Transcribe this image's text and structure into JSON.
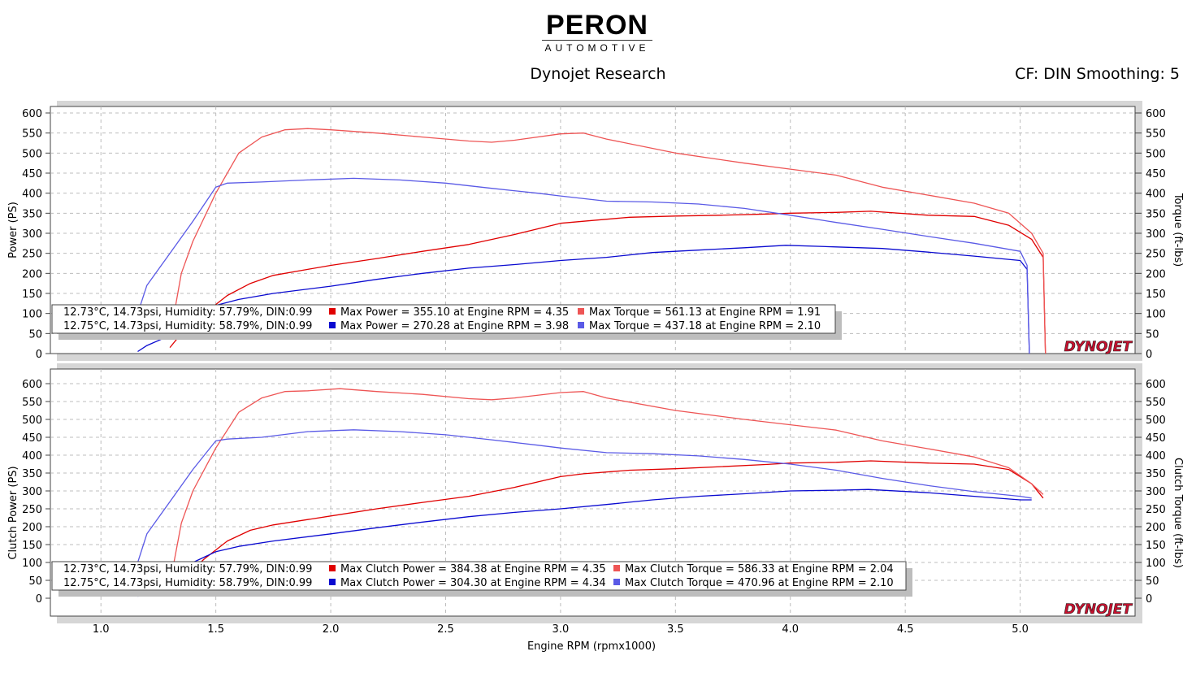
{
  "logo": {
    "name": "PERON",
    "sub": "AUTOMOTIVE"
  },
  "header": {
    "title": "Dynojet Research",
    "settings": "CF: DIN Smoothing: 5"
  },
  "watermark": "DYNOJET",
  "colors": {
    "run1_power": "#e00000",
    "run1_torque": "#ee5555",
    "run2_power": "#0a0ad0",
    "run2_torque": "#5a5ae6"
  },
  "chart_data": [
    {
      "type": "line",
      "xlabel": "Engine RPM (rpmx1000)",
      "ylabel": "Power (PS)",
      "y2label": "Torque (ft-lbs)",
      "xlim": [
        0.78,
        5.5
      ],
      "ylim": [
        0,
        600
      ],
      "xticks": [
        "1.0",
        "1.5",
        "2.0",
        "2.5",
        "3.0",
        "3.5",
        "4.0",
        "4.5",
        "5.0"
      ],
      "yticks": [
        "0",
        "50",
        "100",
        "150",
        "200",
        "250",
        "300",
        "350",
        "400",
        "450",
        "500",
        "550",
        "600"
      ],
      "grid": true,
      "legend": {
        "position": "bottom-left",
        "rows": [
          {
            "conditions": "12.73°C, 14.73psi, Humidity: 57.79%, DIN:0.99",
            "power_text": "Max Power = 355.10 at Engine RPM = 4.35",
            "torque_text": "Max Torque = 561.13 at Engine RPM = 1.91"
          },
          {
            "conditions": "12.75°C, 14.73psi, Humidity: 58.79%, DIN:0.99",
            "power_text": "Max Power = 270.28 at Engine RPM = 3.98",
            "torque_text": "Max Torque = 437.18 at Engine RPM = 2.10"
          }
        ]
      },
      "series": [
        {
          "x": [
            1.3,
            1.35,
            1.45,
            1.55,
            1.65,
            1.75,
            1.9,
            2.0,
            2.2,
            2.4,
            2.6,
            2.8,
            3.0,
            3.1,
            3.3,
            3.5,
            3.7,
            3.9,
            4.0,
            4.2,
            4.35,
            4.6,
            4.8,
            4.95,
            5.05,
            5.1,
            5.11
          ],
          "y": [
            15,
            50,
            100,
            145,
            175,
            195,
            210,
            220,
            237,
            255,
            272,
            297,
            325,
            330,
            340,
            343,
            345,
            348,
            350,
            352,
            355,
            345,
            342,
            320,
            285,
            240,
            0
          ]
        },
        {
          "x": [
            1.3,
            1.35,
            1.4,
            1.5,
            1.6,
            1.7,
            1.8,
            1.9,
            2.0,
            2.2,
            2.4,
            2.6,
            2.7,
            2.8,
            3.0,
            3.1,
            3.2,
            3.5,
            3.8,
            4.0,
            4.2,
            4.4,
            4.6,
            4.8,
            4.95,
            5.05,
            5.1,
            5.11
          ],
          "y": [
            40,
            200,
            280,
            400,
            500,
            540,
            558,
            561,
            558,
            550,
            540,
            530,
            527,
            532,
            548,
            550,
            535,
            500,
            475,
            460,
            445,
            415,
            395,
            375,
            350,
            300,
            250,
            0
          ]
        },
        {
          "x": [
            1.16,
            1.2,
            1.3,
            1.4,
            1.5,
            1.6,
            1.75,
            2.0,
            2.2,
            2.4,
            2.6,
            2.8,
            3.0,
            3.2,
            3.4,
            3.6,
            3.8,
            3.98,
            4.2,
            4.4,
            4.6,
            4.8,
            5.0,
            5.03,
            5.04
          ],
          "y": [
            5,
            20,
            45,
            85,
            120,
            135,
            150,
            168,
            185,
            200,
            213,
            222,
            232,
            240,
            252,
            258,
            264,
            270,
            266,
            262,
            253,
            243,
            232,
            210,
            0
          ]
        },
        {
          "x": [
            1.16,
            1.2,
            1.3,
            1.4,
            1.5,
            1.55,
            1.7,
            1.9,
            2.1,
            2.3,
            2.5,
            2.7,
            2.9,
            3.0,
            3.2,
            3.4,
            3.6,
            3.8,
            4.0,
            4.2,
            4.4,
            4.6,
            4.8,
            5.0,
            5.03,
            5.04
          ],
          "y": [
            100,
            170,
            250,
            330,
            415,
            425,
            428,
            433,
            437,
            433,
            425,
            412,
            400,
            393,
            380,
            378,
            373,
            362,
            345,
            327,
            310,
            292,
            275,
            255,
            220,
            0
          ]
        }
      ]
    },
    {
      "type": "line",
      "xlabel": "Engine RPM (rpmx1000)",
      "ylabel": "Clutch Power (PS)",
      "y2label": "Clutch Torque (ft-lbs)",
      "xlim": [
        0.78,
        5.5
      ],
      "ylim": [
        0,
        600
      ],
      "xticks": [
        "1.0",
        "1.5",
        "2.0",
        "2.5",
        "3.0",
        "3.5",
        "4.0",
        "4.5",
        "5.0"
      ],
      "yticks": [
        "0",
        "50",
        "100",
        "150",
        "200",
        "250",
        "300",
        "350",
        "400",
        "450",
        "500",
        "550",
        "600"
      ],
      "grid": true,
      "legend": {
        "position": "bottom-left",
        "rows": [
          {
            "conditions": "12.73°C, 14.73psi, Humidity: 57.79%, DIN:0.99",
            "power_text": "Max Clutch Power = 384.38 at Engine RPM = 4.35",
            "torque_text": "Max Clutch Torque = 586.33 at Engine RPM = 2.04"
          },
          {
            "conditions": "12.75°C, 14.73psi, Humidity: 58.79%, DIN:0.99",
            "power_text": "Max Clutch Power = 304.30 at Engine RPM = 4.34",
            "torque_text": "Max Clutch Torque = 470.96 at Engine RPM = 2.10"
          }
        ]
      },
      "series": [
        {
          "x": [
            1.3,
            1.35,
            1.45,
            1.55,
            1.65,
            1.75,
            1.9,
            2.0,
            2.2,
            2.4,
            2.6,
            2.8,
            3.0,
            3.1,
            3.3,
            3.5,
            3.7,
            3.9,
            4.0,
            4.2,
            4.35,
            4.6,
            4.8,
            4.95,
            5.05,
            5.1
          ],
          "y": [
            15,
            50,
            110,
            160,
            190,
            205,
            220,
            230,
            250,
            268,
            285,
            310,
            340,
            348,
            358,
            362,
            368,
            374,
            378,
            380,
            384,
            378,
            375,
            360,
            320,
            280
          ]
        },
        {
          "x": [
            1.3,
            1.35,
            1.4,
            1.5,
            1.6,
            1.7,
            1.8,
            1.9,
            2.04,
            2.2,
            2.4,
            2.6,
            2.7,
            2.8,
            3.0,
            3.1,
            3.2,
            3.5,
            3.8,
            4.0,
            4.2,
            4.4,
            4.6,
            4.8,
            4.95,
            5.05,
            5.1
          ],
          "y": [
            40,
            210,
            300,
            420,
            520,
            560,
            578,
            580,
            586,
            578,
            570,
            558,
            555,
            560,
            575,
            578,
            560,
            525,
            500,
            485,
            470,
            440,
            418,
            395,
            365,
            320,
            290
          ]
        },
        {
          "x": [
            1.16,
            1.2,
            1.3,
            1.4,
            1.5,
            1.6,
            1.75,
            2.0,
            2.2,
            2.4,
            2.6,
            2.8,
            3.0,
            3.2,
            3.4,
            3.6,
            3.8,
            4.0,
            4.2,
            4.34,
            4.6,
            4.8,
            5.0,
            5.05
          ],
          "y": [
            5,
            25,
            55,
            100,
            130,
            145,
            160,
            180,
            197,
            213,
            228,
            240,
            250,
            262,
            275,
            285,
            292,
            300,
            302,
            304,
            295,
            285,
            275,
            275
          ]
        },
        {
          "x": [
            1.16,
            1.2,
            1.3,
            1.4,
            1.5,
            1.55,
            1.7,
            1.9,
            2.1,
            2.3,
            2.5,
            2.7,
            2.9,
            3.0,
            3.2,
            3.4,
            3.6,
            3.8,
            4.0,
            4.2,
            4.4,
            4.6,
            4.8,
            5.0,
            5.05
          ],
          "y": [
            100,
            180,
            270,
            360,
            440,
            445,
            450,
            466,
            471,
            466,
            457,
            443,
            428,
            420,
            407,
            404,
            398,
            388,
            375,
            358,
            335,
            315,
            298,
            285,
            280
          ]
        }
      ]
    }
  ]
}
